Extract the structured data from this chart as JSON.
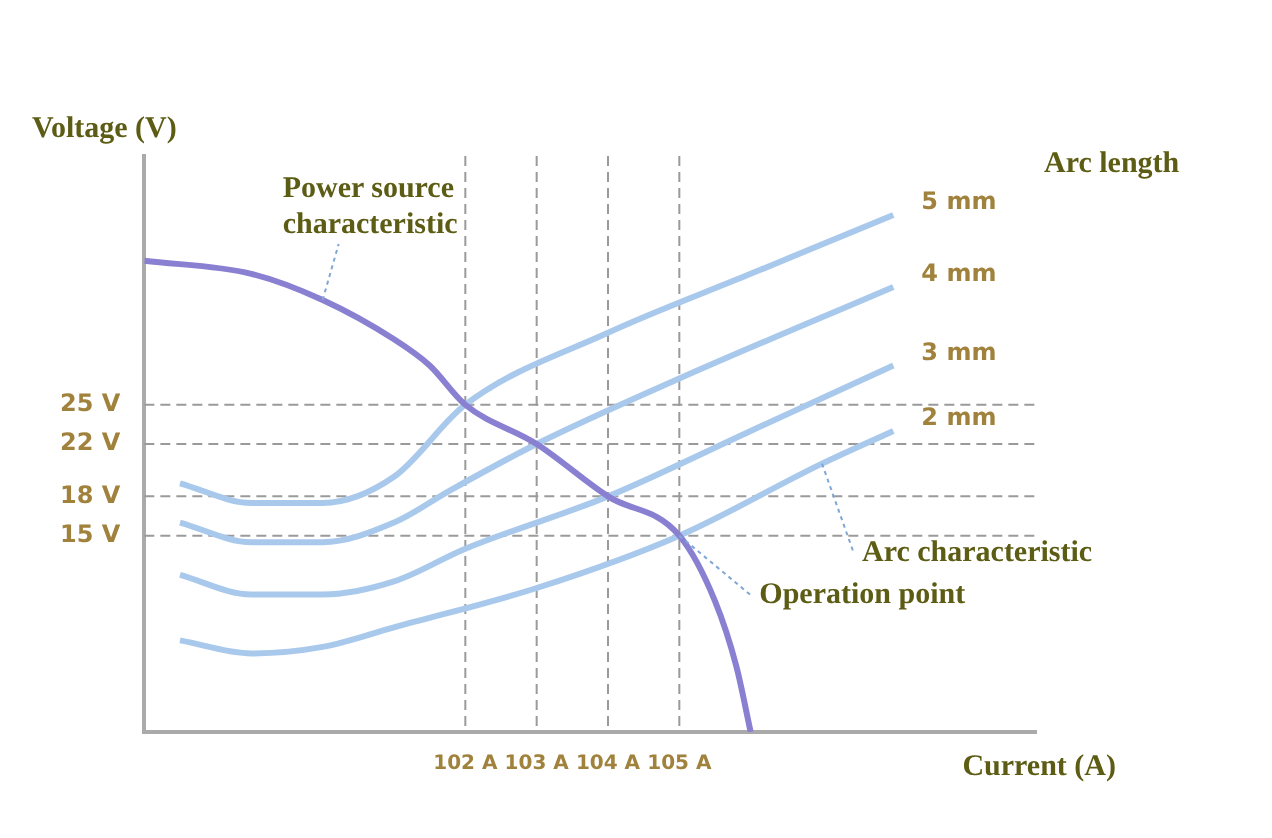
{
  "chart_data": {
    "type": "line",
    "xlabel": "Current (A)",
    "ylabel": "Voltage (V)",
    "legend_title": "Arc length",
    "legend": false,
    "grid": false,
    "xlim": [
      97.5,
      110
    ],
    "ylim": [
      0,
      44
    ],
    "xticks": [
      {
        "value": 102,
        "label": "102 A"
      },
      {
        "value": 103,
        "label": "103 A"
      },
      {
        "value": 104,
        "label": "104 A"
      },
      {
        "value": 105,
        "label": "105 A"
      }
    ],
    "yticks": [
      {
        "value": 15,
        "label": "15 V"
      },
      {
        "value": 18,
        "label": "18 V"
      },
      {
        "value": 22,
        "label": "22 V"
      },
      {
        "value": 25,
        "label": "25 V"
      }
    ],
    "series": [
      {
        "name": "Power source characteristic",
        "color": "#8a80d2",
        "x": [
          97.5,
          99,
          100,
          101,
          101.5,
          102,
          103,
          104,
          105,
          105.5,
          105.8,
          106
        ],
        "values": [
          36,
          35,
          33,
          30,
          28,
          25,
          22,
          18,
          15,
          10,
          5,
          0
        ]
      },
      {
        "name": "5 mm",
        "color": "#a9c9ec",
        "x": [
          98,
          99,
          100,
          101,
          102,
          104,
          106,
          108
        ],
        "values": [
          19,
          17.5,
          17.5,
          19.5,
          25,
          30.5,
          35,
          39.5
        ]
      },
      {
        "name": "4 mm",
        "color": "#a9c9ec",
        "x": [
          98,
          99,
          100,
          101,
          101.8,
          103,
          105,
          108
        ],
        "values": [
          16,
          14.5,
          14.5,
          16,
          18.5,
          22,
          27,
          34
        ]
      },
      {
        "name": "3 mm",
        "color": "#a9c9ec",
        "x": [
          98,
          99,
          100,
          101,
          102,
          104,
          106,
          108
        ],
        "values": [
          12,
          10.5,
          10.5,
          11.5,
          14,
          18,
          23,
          28
        ]
      },
      {
        "name": "2 mm",
        "color": "#a9c9ec",
        "x": [
          98,
          99,
          100,
          101,
          103,
          105,
          107,
          108
        ],
        "values": [
          7,
          6,
          6.5,
          8,
          11,
          15,
          20.5,
          23
        ]
      }
    ],
    "ref_lines": [
      {
        "axis": "x",
        "value": 102,
        "color": "#9a9a9a",
        "line_style": "dashed"
      },
      {
        "axis": "x",
        "value": 103,
        "color": "#9a9a9a",
        "line_style": "dashed"
      },
      {
        "axis": "x",
        "value": 104,
        "color": "#9a9a9a",
        "line_style": "dashed"
      },
      {
        "axis": "x",
        "value": 105,
        "color": "#9a9a9a",
        "line_style": "dashed"
      },
      {
        "axis": "y",
        "value": 15,
        "color": "#9a9a9a",
        "line_style": "dashed"
      },
      {
        "axis": "y",
        "value": 18,
        "color": "#9a9a9a",
        "line_style": "dashed"
      },
      {
        "axis": "y",
        "value": 22,
        "color": "#9a9a9a",
        "line_style": "dashed"
      },
      {
        "axis": "y",
        "value": 25,
        "color": "#9a9a9a",
        "line_style": "dashed"
      }
    ],
    "annotations": [
      {
        "text": "Operation point",
        "x": 105,
        "y": 15
      },
      {
        "text": "Arc characteristic",
        "x": 107,
        "y": 20.5
      }
    ]
  }
}
